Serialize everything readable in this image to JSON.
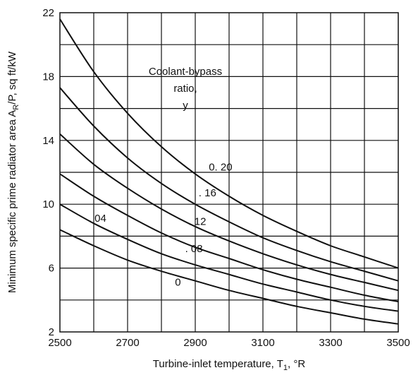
{
  "chart_data": {
    "type": "line",
    "xlabel": "Turbine-inlet temperature, T",
    "xlabel_sub": "1",
    "xlabel_unit": ", °R",
    "ylabel": "Minimum specific prime radiator area  A",
    "ylabel_sub": "R",
    "ylabel_unit": "/P,  sq ft/kW",
    "xlim": [
      2500,
      3500
    ],
    "ylim": [
      2,
      22
    ],
    "x_ticks": [
      2500,
      2700,
      2900,
      3100,
      3300,
      3500
    ],
    "x_tick_labels": [
      "2500",
      "2700",
      "2900",
      "3100",
      "3300",
      "3500"
    ],
    "y_ticks": [
      2,
      6,
      10,
      14,
      18,
      22
    ],
    "y_tick_labels": [
      "2",
      "6",
      "10",
      "14",
      "18",
      "22"
    ],
    "legend_title": [
      "Coolant-bypass",
      "ratio,",
      "y"
    ],
    "series": [
      {
        "name": "0.20",
        "label": "0. 20",
        "x": [
          2500,
          2600,
          2700,
          2800,
          2900,
          3000,
          3100,
          3200,
          3300,
          3400,
          3500
        ],
        "y": [
          21.6,
          18.3,
          15.7,
          13.6,
          11.9,
          10.5,
          9.3,
          8.3,
          7.4,
          6.7,
          6.0
        ]
      },
      {
        "name": "0.16",
        "label": ". 16",
        "x": [
          2500,
          2600,
          2700,
          2800,
          2900,
          3000,
          3100,
          3200,
          3300,
          3400,
          3500
        ],
        "y": [
          17.3,
          14.9,
          12.9,
          11.3,
          10.0,
          8.9,
          7.9,
          7.1,
          6.4,
          5.8,
          5.2
        ]
      },
      {
        "name": "0.12",
        "label": ". 12",
        "x": [
          2500,
          2600,
          2700,
          2800,
          2900,
          3000,
          3100,
          3200,
          3300,
          3400,
          3500
        ],
        "y": [
          14.4,
          12.5,
          11.0,
          9.7,
          8.6,
          7.7,
          6.9,
          6.2,
          5.6,
          5.1,
          4.6
        ]
      },
      {
        "name": "0.08",
        "label": ". 08",
        "x": [
          2500,
          2600,
          2700,
          2800,
          2900,
          3000,
          3100,
          3200,
          3300,
          3400,
          3500
        ],
        "y": [
          11.9,
          10.5,
          9.3,
          8.2,
          7.3,
          6.6,
          5.9,
          5.3,
          4.8,
          4.3,
          3.9
        ]
      },
      {
        "name": "0.04",
        "label": ". 04",
        "x": [
          2500,
          2600,
          2700,
          2800,
          2900,
          3000,
          3100,
          3200,
          3300,
          3400,
          3500
        ],
        "y": [
          10.0,
          8.8,
          7.8,
          6.9,
          6.2,
          5.6,
          5.0,
          4.5,
          4.0,
          3.6,
          3.3
        ]
      },
      {
        "name": "0",
        "label": "0",
        "x": [
          2500,
          2600,
          2700,
          2800,
          2900,
          3000,
          3100,
          3200,
          3300,
          3400,
          3500
        ],
        "y": [
          8.4,
          7.4,
          6.5,
          5.8,
          5.2,
          4.6,
          4.1,
          3.6,
          3.2,
          2.8,
          2.5
        ]
      }
    ]
  }
}
